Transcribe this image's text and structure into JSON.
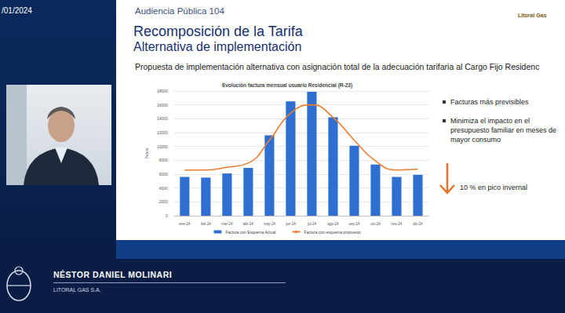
{
  "header": {
    "date": "/01/2024"
  },
  "slide": {
    "event": "Audiencia Pública 104",
    "title": "Recomposición de la Tarifa",
    "subtitle": "Alternativa de implementación",
    "logo": "Litoral Gas",
    "description": "Propuesta de implementación alternativa con asignación total de la adecuación tarifaria al Cargo Fijo Residenc",
    "bullets": [
      "Facturas más previsibles",
      "Minimiza el impacto en el presupuesto familiar en meses de mayor consumo"
    ],
    "highlight": "10 % en pico invernal"
  },
  "chart_data": {
    "type": "bar",
    "title": "Evolución factura mensual usuario Residencial (R-23)",
    "y_label": "Pesos",
    "categories": [
      "ene-24",
      "feb-24",
      "mar-24",
      "abr-24",
      "may-24",
      "jun-24",
      "jul-24",
      "ago-24",
      "sep-24",
      "oct-24",
      "nov-24",
      "dic-24"
    ],
    "series": [
      {
        "name": "Factura con Esquema Actual",
        "type": "bar",
        "color": "#2f6fd1",
        "values": [
          5600,
          5500,
          6100,
          6900,
          11600,
          16500,
          17900,
          14200,
          10100,
          7400,
          5600,
          5900
        ]
      },
      {
        "name": "Factura con esquema propuesto",
        "type": "line",
        "color": "#ed7d31",
        "values": [
          6600,
          6600,
          7000,
          7600,
          10900,
          14800,
          16000,
          14200,
          10900,
          7900,
          6600,
          6700
        ]
      }
    ],
    "ylim": [
      0,
      18000
    ],
    "yticks": [
      0,
      2000,
      4000,
      6000,
      8000,
      10000,
      12000,
      14000,
      16000,
      18000
    ],
    "grid": true,
    "legend": "bottom"
  },
  "speaker": {
    "name": "NÉSTOR DANIEL MOLINARI",
    "organization": "LITORAL GAS S.A."
  }
}
